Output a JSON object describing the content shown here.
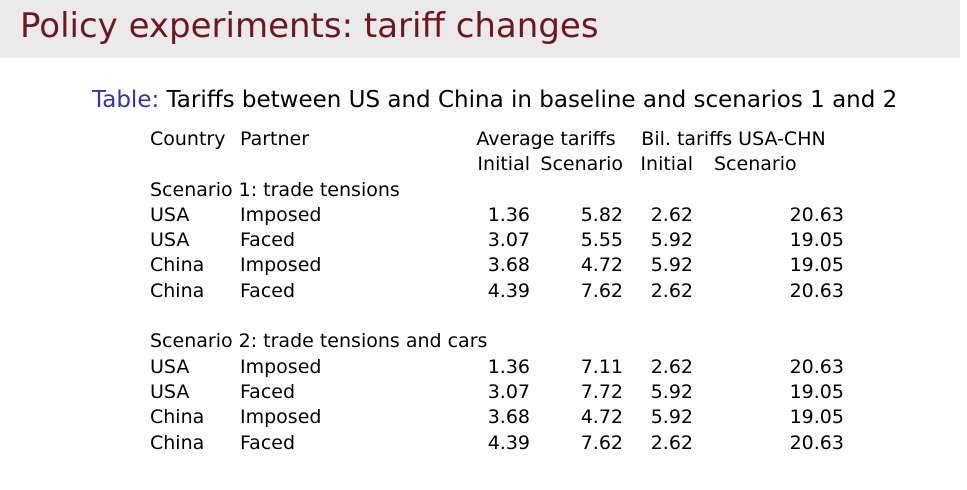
{
  "slide": {
    "title": "Policy experiments: tariff changes"
  },
  "caption": {
    "label": "Table:",
    "text": "Tariffs between US and China in baseline and scenarios 1 and 2"
  },
  "table": {
    "headers": {
      "country": "Country",
      "partner": "Partner",
      "avg_group": "Average tariffs",
      "bil_group": "Bil. tariffs USA-CHN",
      "initial": "Initial",
      "scenario": "Scenario"
    },
    "sections": [
      {
        "title": "Scenario 1: trade tensions",
        "rows": [
          {
            "country": "USA",
            "partner": "Imposed",
            "avg_initial": "1.36",
            "avg_scenario": "5.82",
            "bil_initial": "2.62",
            "bil_scenario": "20.63"
          },
          {
            "country": "USA",
            "partner": "Faced",
            "avg_initial": "3.07",
            "avg_scenario": "5.55",
            "bil_initial": "5.92",
            "bil_scenario": "19.05"
          },
          {
            "country": "China",
            "partner": "Imposed",
            "avg_initial": "3.68",
            "avg_scenario": "4.72",
            "bil_initial": "5.92",
            "bil_scenario": "19.05"
          },
          {
            "country": "China",
            "partner": "Faced",
            "avg_initial": "4.39",
            "avg_scenario": "7.62",
            "bil_initial": "2.62",
            "bil_scenario": "20.63"
          }
        ]
      },
      {
        "title": "Scenario 2: trade tensions and cars",
        "rows": [
          {
            "country": "USA",
            "partner": "Imposed",
            "avg_initial": "1.36",
            "avg_scenario": "7.11",
            "bil_initial": "2.62",
            "bil_scenario": "20.63"
          },
          {
            "country": "USA",
            "partner": "Faced",
            "avg_initial": "3.07",
            "avg_scenario": "7.72",
            "bil_initial": "5.92",
            "bil_scenario": "19.05"
          },
          {
            "country": "China",
            "partner": "Imposed",
            "avg_initial": "3.68",
            "avg_scenario": "4.72",
            "bil_initial": "5.92",
            "bil_scenario": "19.05"
          },
          {
            "country": "China",
            "partner": "Faced",
            "avg_initial": "4.39",
            "avg_scenario": "7.62",
            "bil_initial": "2.62",
            "bil_scenario": "20.63"
          }
        ]
      }
    ]
  },
  "colors": {
    "title": "#6d1820",
    "header_band": "#eaeaea",
    "caption_label": "#3333b3"
  }
}
